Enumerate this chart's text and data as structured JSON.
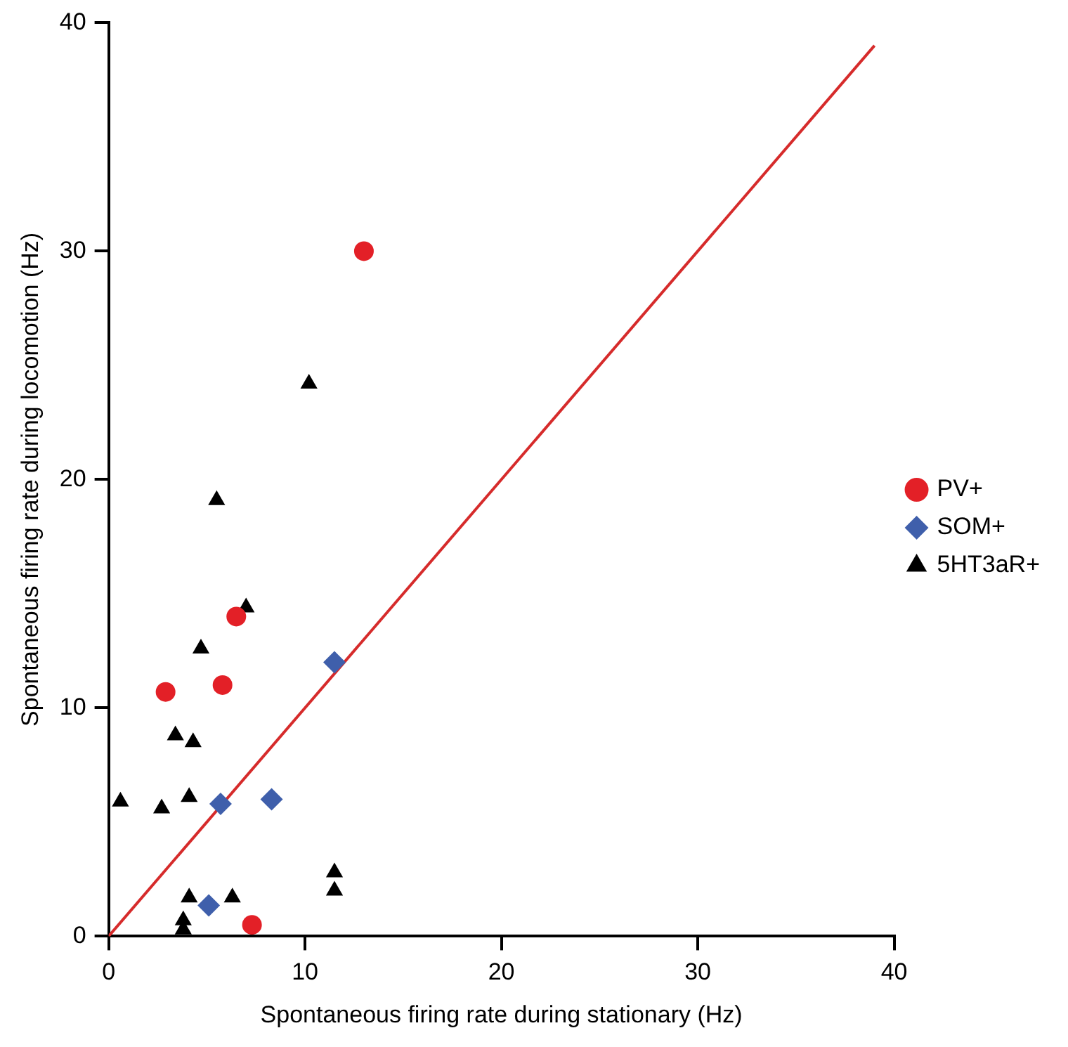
{
  "chart_data": {
    "type": "scatter",
    "xlabel": "Spontaneous firing rate during stationary (Hz)",
    "ylabel": "Spontaneous firing rate during locomotion (Hz)",
    "xlim": [
      0,
      40
    ],
    "ylim": [
      0,
      40
    ],
    "xticks": [
      0,
      10,
      20,
      30,
      40
    ],
    "yticks": [
      0,
      10,
      20,
      30,
      40
    ],
    "grid": false,
    "legend": "right",
    "series": [
      {
        "name": "PV+",
        "color": "#e32027",
        "marker": "circle",
        "x": [
          13.0,
          6.5,
          2.9,
          5.8,
          7.3
        ],
        "values": [
          30.0,
          14.0,
          10.7,
          11.0,
          0.5
        ]
      },
      {
        "name": "SOM+",
        "color": "#3f5fab",
        "marker": "diamond",
        "x": [
          11.5,
          5.7,
          8.3,
          5.1
        ],
        "values": [
          12.0,
          5.8,
          6.0,
          1.35
        ]
      },
      {
        "name": "5HT3aR+",
        "color": "#000000",
        "marker": "triangle",
        "x": [
          10.2,
          5.5,
          7.0,
          4.7,
          3.4,
          4.3,
          0.6,
          2.7,
          4.1,
          4.1,
          6.3,
          3.8,
          3.8,
          11.5,
          11.5
        ],
        "values": [
          24.2,
          19.1,
          14.4,
          12.6,
          8.8,
          8.5,
          5.9,
          5.6,
          6.1,
          1.7,
          1.7,
          0.7,
          0.3,
          2.8,
          2.0
        ]
      },
      {
        "type": "line",
        "color": "#d62b2b",
        "marker": "none",
        "line_style": "solid",
        "x": [
          0,
          39
        ],
        "values": [
          0,
          39
        ]
      }
    ]
  }
}
